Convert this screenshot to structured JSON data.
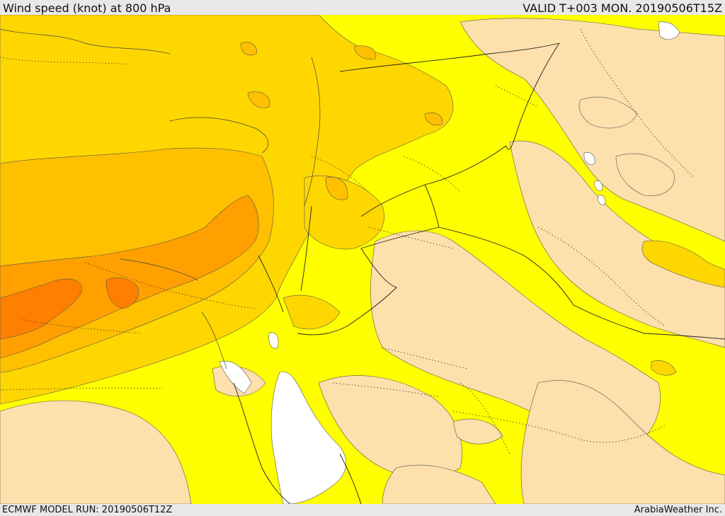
{
  "header": {
    "title": "Wind speed (knot) at 800 hPa",
    "valid": "VALID T+003 MON. 20190506T15Z"
  },
  "footer": {
    "model_run": "ECMWF MODEL RUN: 20190506T12Z",
    "credit": "ArabiaWeather Inc."
  },
  "legend_colors": {
    "calm": "#ffffff",
    "light": "#fde0ab",
    "moderate": "#ffff00",
    "fresh": "#ffd700",
    "strong": "#ffc000",
    "very_strong": "#ffa000",
    "gale": "#ff8000"
  }
}
